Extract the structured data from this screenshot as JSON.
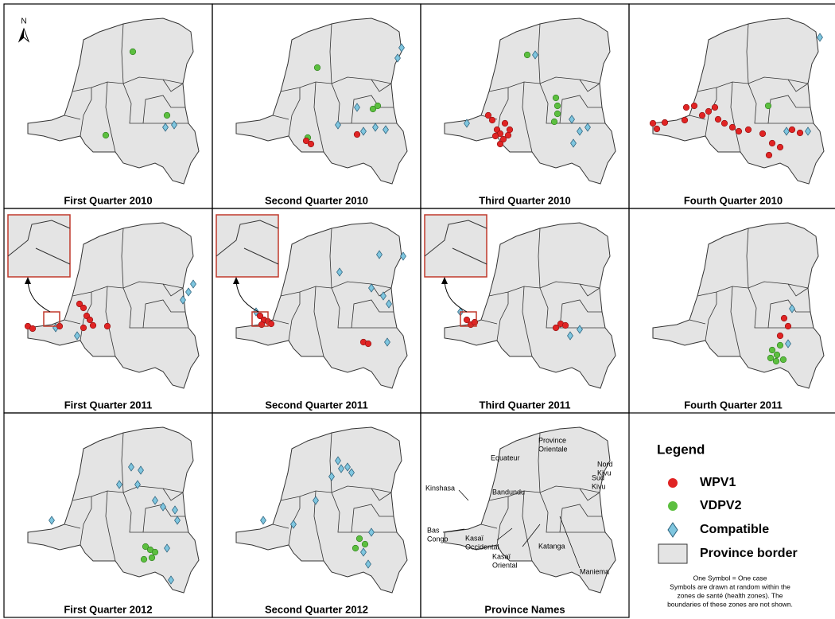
{
  "north": "N",
  "panels": [
    {
      "title": "First Quarter 2010"
    },
    {
      "title": "Second Quarter 2010"
    },
    {
      "title": "Third Quarter 2010"
    },
    {
      "title": "Fourth Quarter 2010"
    },
    {
      "title": "First Quarter 2011"
    },
    {
      "title": "Second Quarter 2011"
    },
    {
      "title": "Third Quarter 2011"
    },
    {
      "title": "Fourth Quarter 2011"
    },
    {
      "title": "First Quarter 2012"
    },
    {
      "title": "Second Quarter 2012"
    },
    {
      "title": "Province Names"
    }
  ],
  "province_names": [
    {
      "lines": [
        "Province",
        "Orientale"
      ]
    },
    {
      "lines": [
        "Equateur"
      ]
    },
    {
      "lines": [
        "Nord",
        "Kivu"
      ]
    },
    {
      "lines": [
        "Sud",
        "Kivu"
      ]
    },
    {
      "lines": [
        "Kinshasa"
      ]
    },
    {
      "lines": [
        "Bandundu"
      ]
    },
    {
      "lines": [
        "Bas",
        "Congo"
      ]
    },
    {
      "lines": [
        "Kasaï",
        "Occidental"
      ]
    },
    {
      "lines": [
        "Kasaï",
        "Oriental"
      ]
    },
    {
      "lines": [
        "Katanga"
      ]
    },
    {
      "lines": [
        "Maniema"
      ]
    }
  ],
  "legend": {
    "title": "Legend",
    "items": [
      "WPV1",
      "VDPV2",
      "Compatible",
      "Province border"
    ],
    "note": [
      "One Symbol = One case",
      "Symbols are drawn at random within the",
      "zones de santé (health zones). The",
      "boundaries of these zones are not shown."
    ]
  }
}
